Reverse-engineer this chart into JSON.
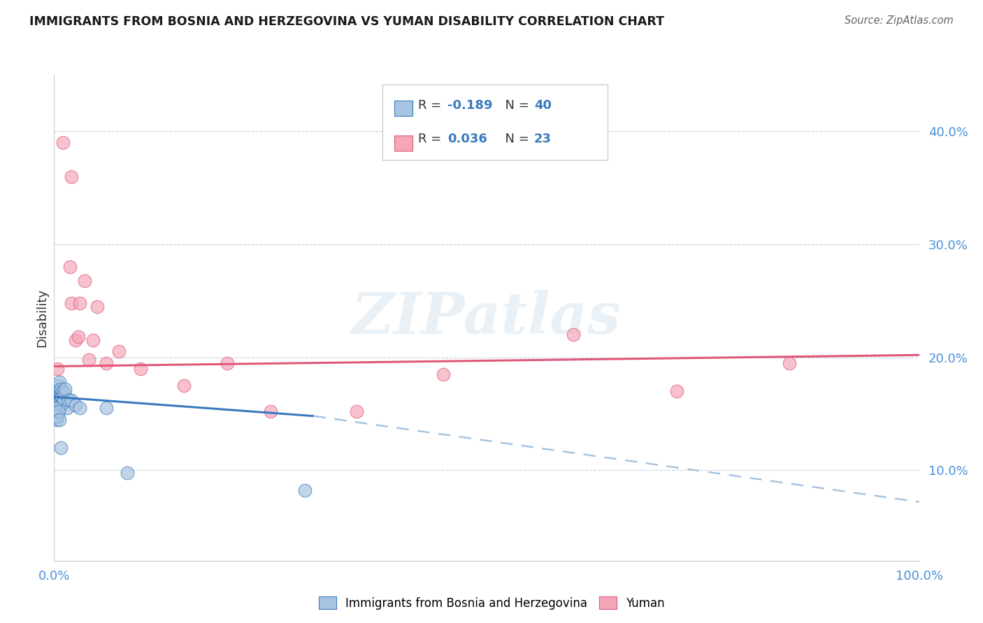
{
  "title": "IMMIGRANTS FROM BOSNIA AND HERZEGOVINA VS YUMAN DISABILITY CORRELATION CHART",
  "source": "Source: ZipAtlas.com",
  "ylabel": "Disability",
  "y_ticks": [
    0.1,
    0.2,
    0.3,
    0.4
  ],
  "y_tick_labels": [
    "10.0%",
    "20.0%",
    "30.0%",
    "40.0%"
  ],
  "xlim": [
    0.0,
    1.0
  ],
  "ylim": [
    0.02,
    0.45
  ],
  "blue_R": -0.189,
  "blue_N": 40,
  "pink_R": 0.036,
  "pink_N": 23,
  "blue_color": "#a8c4e0",
  "pink_color": "#f4a7b9",
  "blue_line_color": "#3a7abf",
  "pink_line_color": "#e05878",
  "blue_dashed_color": "#a8c4e0",
  "watermark": "ZIPatlas",
  "legend_label_blue": "Immigrants from Bosnia and Herzegovina",
  "legend_label_pink": "Yuman",
  "blue_dots_x": [
    0.002,
    0.003,
    0.003,
    0.004,
    0.004,
    0.005,
    0.005,
    0.005,
    0.006,
    0.006,
    0.006,
    0.007,
    0.007,
    0.007,
    0.008,
    0.008,
    0.008,
    0.009,
    0.009,
    0.01,
    0.01,
    0.011,
    0.012,
    0.013,
    0.015,
    0.017,
    0.02,
    0.025,
    0.03,
    0.001,
    0.001,
    0.002,
    0.003,
    0.004,
    0.005,
    0.006,
    0.008,
    0.06,
    0.085,
    0.29
  ],
  "blue_dots_y": [
    0.17,
    0.165,
    0.172,
    0.168,
    0.155,
    0.16,
    0.175,
    0.158,
    0.162,
    0.155,
    0.178,
    0.165,
    0.17,
    0.158,
    0.162,
    0.168,
    0.172,
    0.165,
    0.158,
    0.16,
    0.17,
    0.162,
    0.168,
    0.172,
    0.155,
    0.162,
    0.162,
    0.158,
    0.155,
    0.15,
    0.155,
    0.148,
    0.145,
    0.148,
    0.152,
    0.145,
    0.12,
    0.155,
    0.098,
    0.082
  ],
  "pink_dots_x": [
    0.004,
    0.01,
    0.02,
    0.018,
    0.02,
    0.025,
    0.03,
    0.028,
    0.035,
    0.04,
    0.05,
    0.045,
    0.06,
    0.075,
    0.1,
    0.15,
    0.2,
    0.25,
    0.35,
    0.45,
    0.6,
    0.72,
    0.85
  ],
  "pink_dots_y": [
    0.19,
    0.39,
    0.36,
    0.28,
    0.248,
    0.215,
    0.248,
    0.218,
    0.268,
    0.198,
    0.245,
    0.215,
    0.195,
    0.205,
    0.19,
    0.175,
    0.195,
    0.152,
    0.152,
    0.185,
    0.22,
    0.17,
    0.195
  ],
  "blue_line_x0": 0.0,
  "blue_line_y0": 0.165,
  "blue_line_x1": 0.3,
  "blue_line_y1": 0.148,
  "blue_line_x2": 1.0,
  "blue_line_y2": 0.072,
  "pink_line_x0": 0.0,
  "pink_line_y0": 0.192,
  "pink_line_x1": 1.0,
  "pink_line_y1": 0.202
}
